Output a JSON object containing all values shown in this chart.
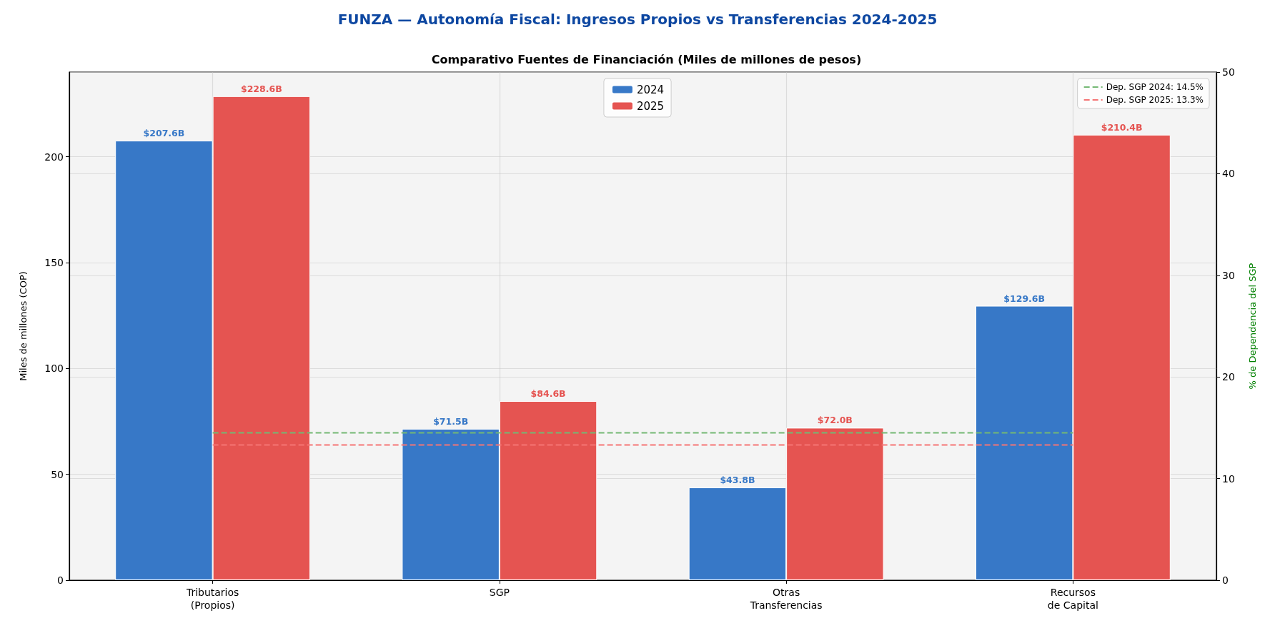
{
  "chart_data": {
    "type": "bar",
    "title": "FUNZA — Autonomía Fiscal: Ingresos Propios vs Transferencias 2024-2025",
    "subtitle": "Comparativo Fuentes de Financiación (Miles de millones de pesos)",
    "ylabel": "Miles de millones (COP)",
    "y2label": "% de Dependencia del SGP",
    "categories": [
      "Tributarios\n(Propios)",
      "SGP",
      "Otras\nTransferencias",
      "Recursos\nde Capital"
    ],
    "series": [
      {
        "name": "2024",
        "color": "#3778c7",
        "values": [
          207.6,
          71.5,
          43.8,
          129.6
        ],
        "value_labels": [
          "$207.6B",
          "$71.5B",
          "$43.8B",
          "$129.6B"
        ]
      },
      {
        "name": "2025",
        "color": "#e55451",
        "values": [
          228.6,
          84.6,
          72.0,
          210.4
        ],
        "value_labels": [
          "$228.6B",
          "$84.6B",
          "$72.0B",
          "$210.4B"
        ]
      },
      {
        "name": "Dep. SGP 2024: 14.5%",
        "type": "line",
        "axis": "y2",
        "color": "#74b874",
        "line_style": "dashed",
        "marker": "none",
        "values": [
          14.5,
          14.5,
          14.5,
          14.5
        ]
      },
      {
        "name": "Dep. SGP 2025: 13.3%",
        "type": "line",
        "axis": "y2",
        "color": "#f57575",
        "line_style": "dashed",
        "marker": "none",
        "values": [
          13.3,
          13.3,
          13.3,
          13.3
        ]
      }
    ],
    "ylim": [
      0,
      240
    ],
    "yticks": [
      0,
      50,
      100,
      150,
      200
    ],
    "y2lim": [
      0,
      50
    ],
    "y2ticks": [
      0,
      10,
      20,
      30,
      40,
      50
    ],
    "grid": true,
    "legend": "top"
  }
}
